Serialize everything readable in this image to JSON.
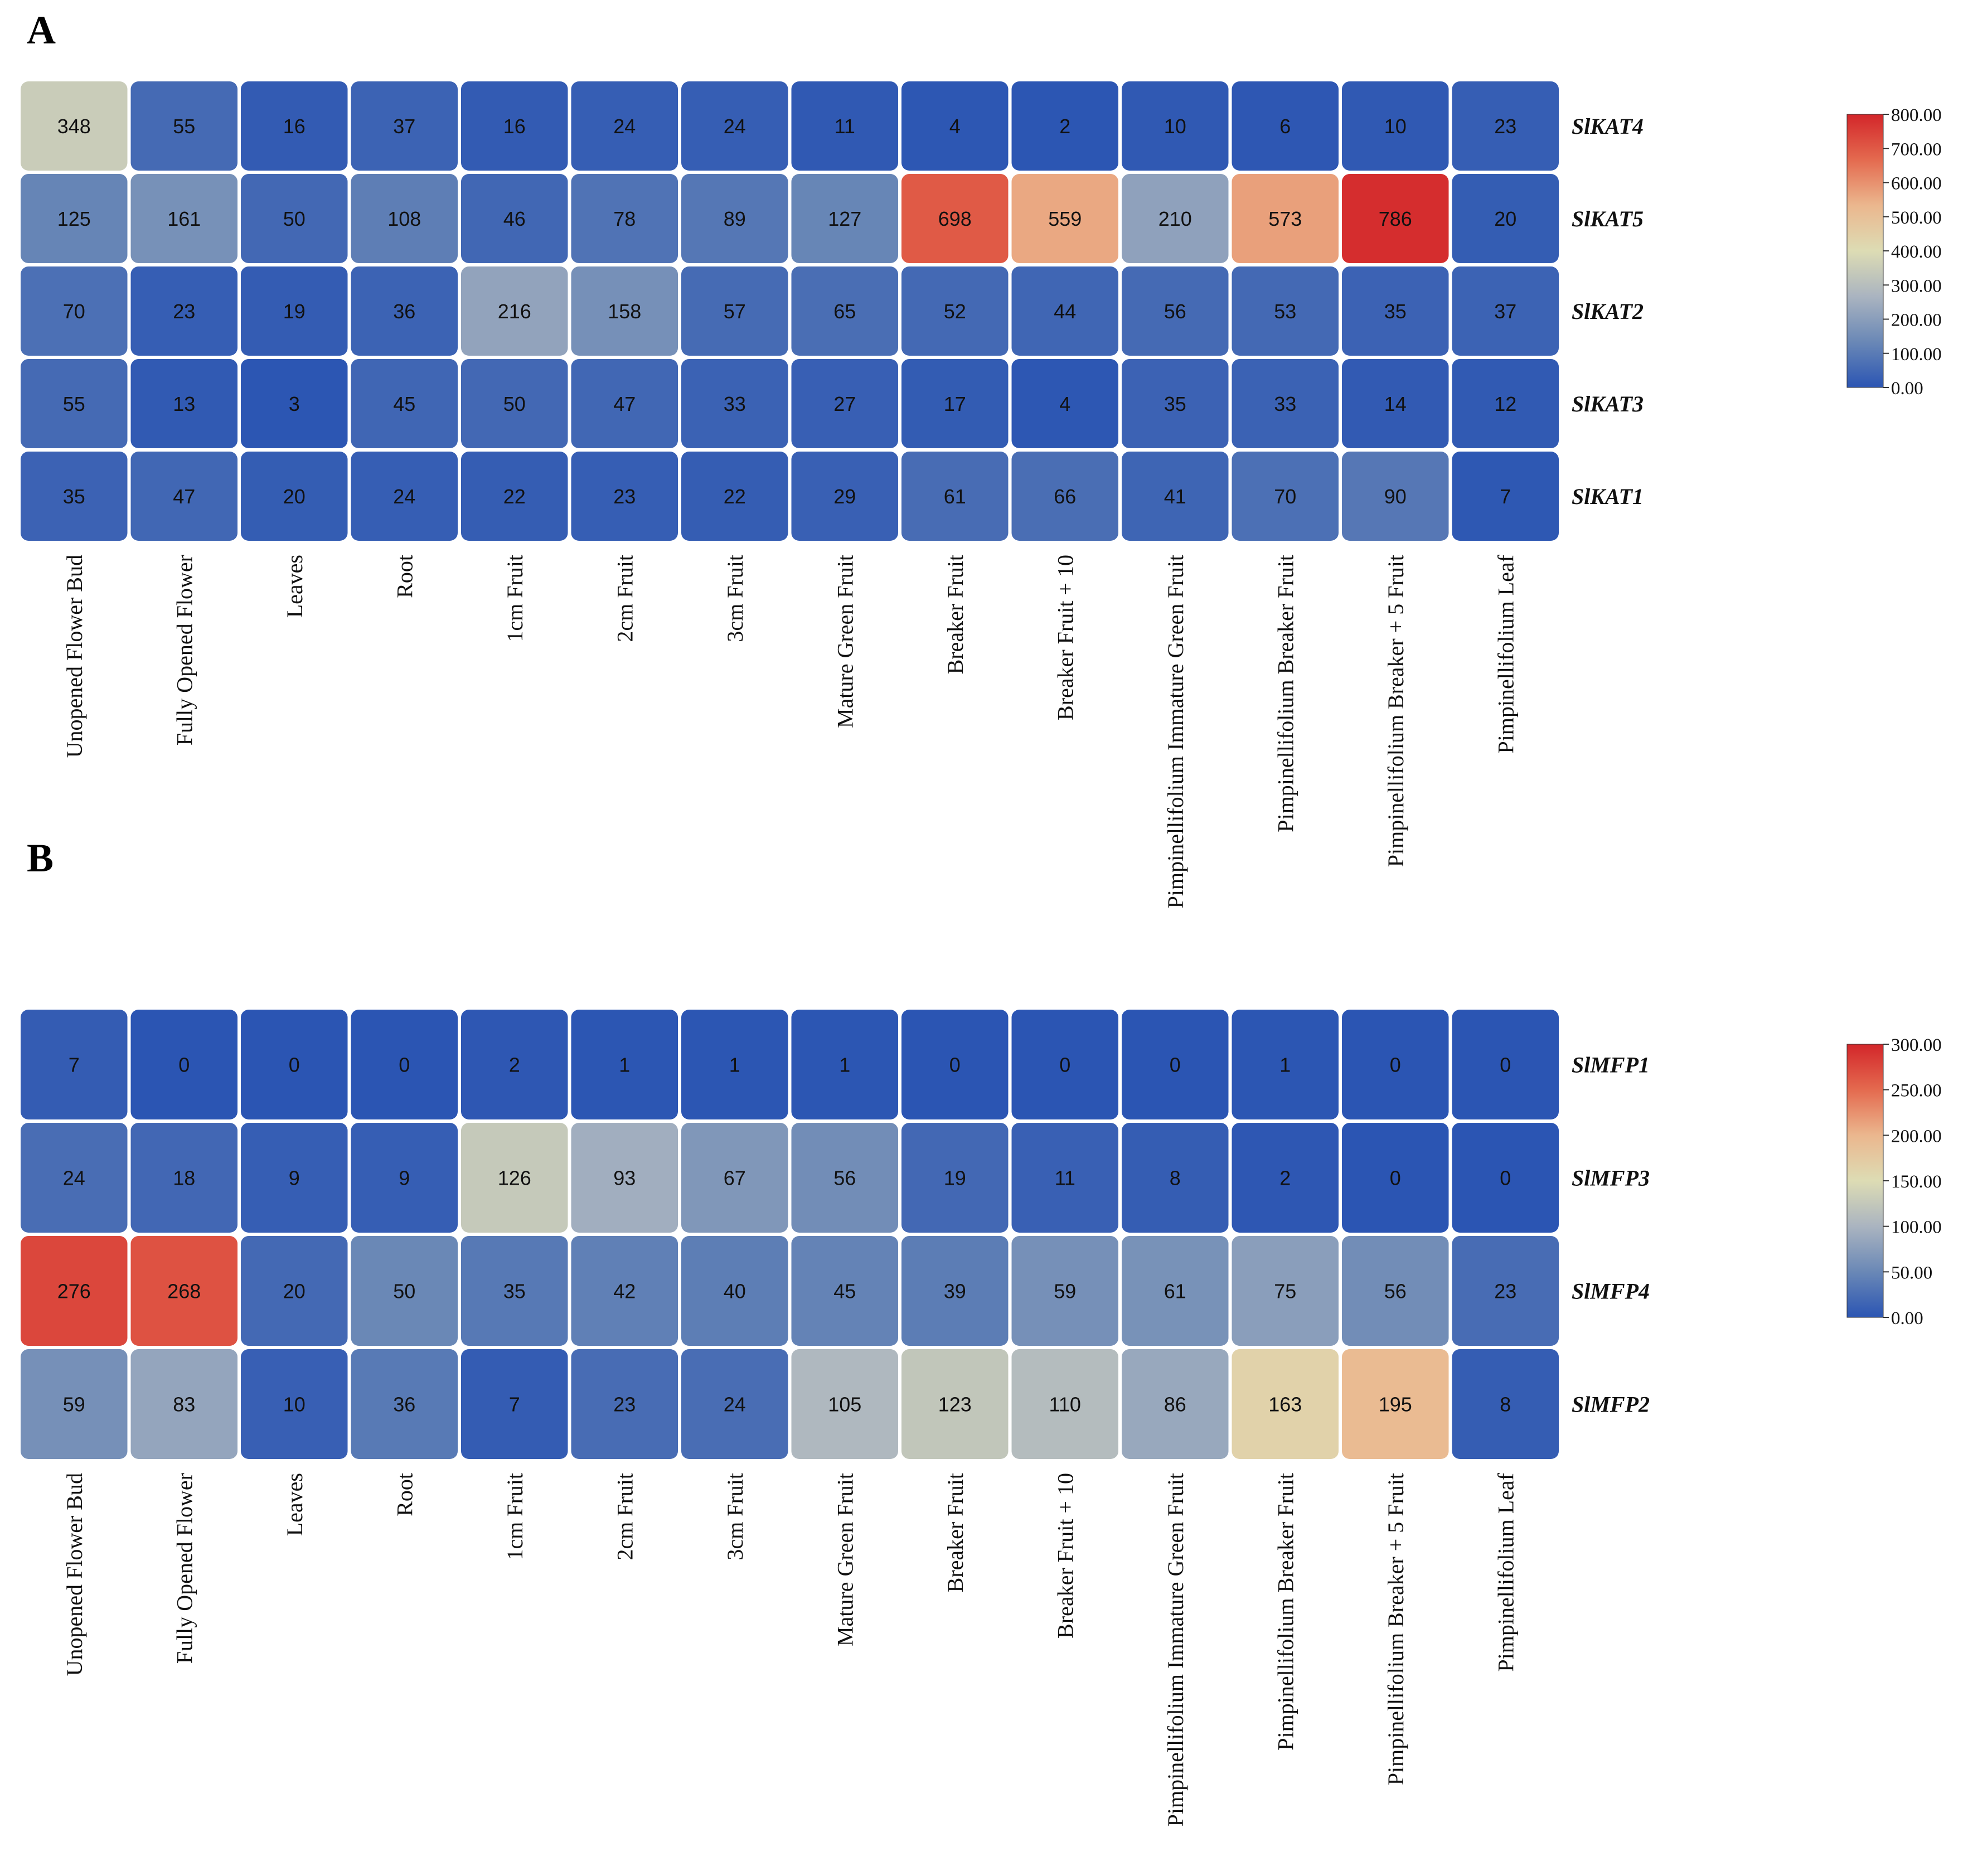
{
  "chart_data": [
    {
      "type": "heatmap",
      "panel_label": "A",
      "rows": [
        "SlKAT4",
        "SlKAT5",
        "SlKAT2",
        "SlKAT3",
        "SlKAT1"
      ],
      "columns": [
        "Unopened Flower Bud",
        "Fully Opened Flower",
        "Leaves",
        "Root",
        "1cm Fruit",
        "2cm Fruit",
        "3cm Fruit",
        "Mature Green Fruit",
        "Breaker Fruit",
        "Breaker Fruit + 10",
        "Pimpinellifolium Immature Green Fruit",
        "Pimpinellifolium Breaker Fruit",
        "Pimpinellifolium Breaker + 5 Fruit",
        "Pimpinellifolium Leaf"
      ],
      "values": [
        [
          348,
          55,
          16,
          37,
          16,
          24,
          24,
          11,
          4,
          2,
          10,
          6,
          10,
          23
        ],
        [
          125,
          161,
          50,
          108,
          46,
          78,
          89,
          127,
          698,
          559,
          210,
          573,
          786,
          20
        ],
        [
          70,
          23,
          19,
          36,
          216,
          158,
          57,
          65,
          52,
          44,
          56,
          53,
          35,
          37
        ],
        [
          55,
          13,
          3,
          45,
          50,
          47,
          33,
          27,
          17,
          4,
          35,
          33,
          14,
          12
        ],
        [
          35,
          47,
          20,
          24,
          22,
          23,
          22,
          29,
          61,
          66,
          41,
          70,
          90,
          7
        ]
      ],
      "colorbar": {
        "min": 0,
        "max": 800,
        "ticks": [
          "0.00",
          "100.00",
          "200.00",
          "300.00",
          "400.00",
          "500.00",
          "600.00",
          "700.00",
          "800.00"
        ]
      }
    },
    {
      "type": "heatmap",
      "panel_label": "B",
      "rows": [
        "SlMFP1",
        "SlMFP3",
        "SlMFP4",
        "SlMFP2"
      ],
      "columns": [
        "Unopened Flower Bud",
        "Fully Opened Flower",
        "Leaves",
        "Root",
        "1cm Fruit",
        "2cm Fruit",
        "3cm Fruit",
        "Mature Green Fruit",
        "Breaker Fruit",
        "Breaker Fruit + 10",
        "Pimpinellifolium Immature Green Fruit",
        "Pimpinellifolium Breaker Fruit",
        "Pimpinellifolium Breaker + 5 Fruit",
        "Pimpinellifolium Leaf"
      ],
      "values": [
        [
          7,
          0,
          0,
          0,
          2,
          1,
          1,
          1,
          0,
          0,
          0,
          1,
          0,
          0
        ],
        [
          24,
          18,
          9,
          9,
          126,
          93,
          67,
          56,
          19,
          11,
          8,
          2,
          0,
          0
        ],
        [
          276,
          268,
          20,
          50,
          35,
          42,
          40,
          45,
          39,
          59,
          61,
          75,
          56,
          23
        ],
        [
          59,
          83,
          10,
          36,
          7,
          23,
          24,
          105,
          123,
          110,
          86,
          163,
          195,
          8
        ]
      ],
      "colorbar": {
        "min": 0,
        "max": 300,
        "ticks": [
          "0.00",
          "50.00",
          "100.00",
          "150.00",
          "200.00",
          "250.00",
          "300.00"
        ]
      }
    }
  ],
  "colors": {
    "scale": [
      "#2b55b3",
      "#6a88b6",
      "#aab4c0",
      "#dddcb4",
      "#ebb78e",
      "#e46a4f",
      "#d3262a"
    ]
  }
}
